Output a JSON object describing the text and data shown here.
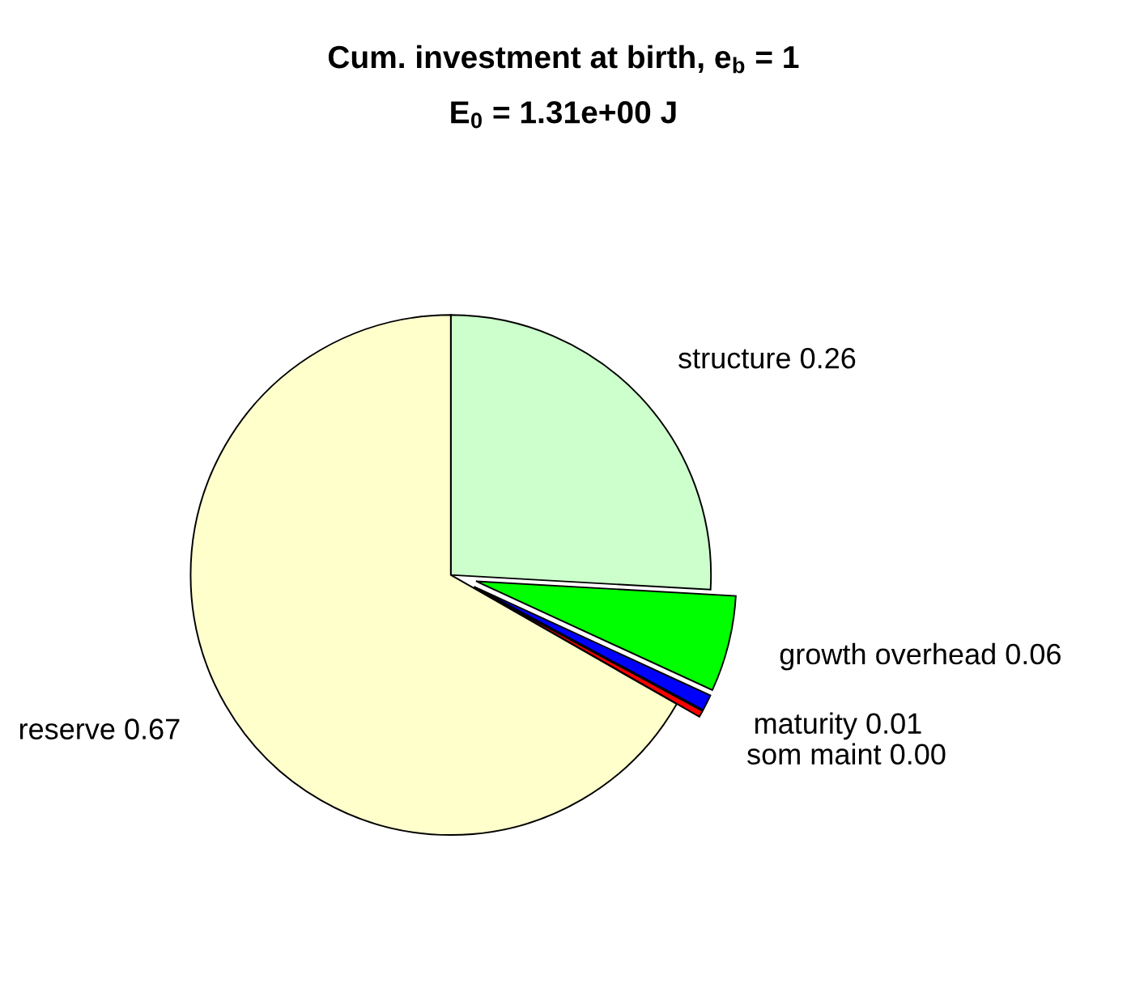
{
  "chart_data": {
    "type": "pie",
    "title": "Cum. investment at birth, e$_{b}$ = 1",
    "subtitle": "E$_{0}$ = 1.31e+00 J",
    "categories": [
      "structure",
      "growth overhead",
      "maturity",
      "som maint",
      "reserve"
    ],
    "values": [
      0.26,
      0.06,
      0.01,
      0.004,
      0.67
    ],
    "value_labels": [
      "0.26",
      "0.06",
      "0.01",
      "0.00",
      "0.67"
    ],
    "colors": [
      "#ccffcc",
      "#00ff00",
      "#0000ff",
      "#ff0000",
      "#ffffcc"
    ],
    "legend": false
  }
}
